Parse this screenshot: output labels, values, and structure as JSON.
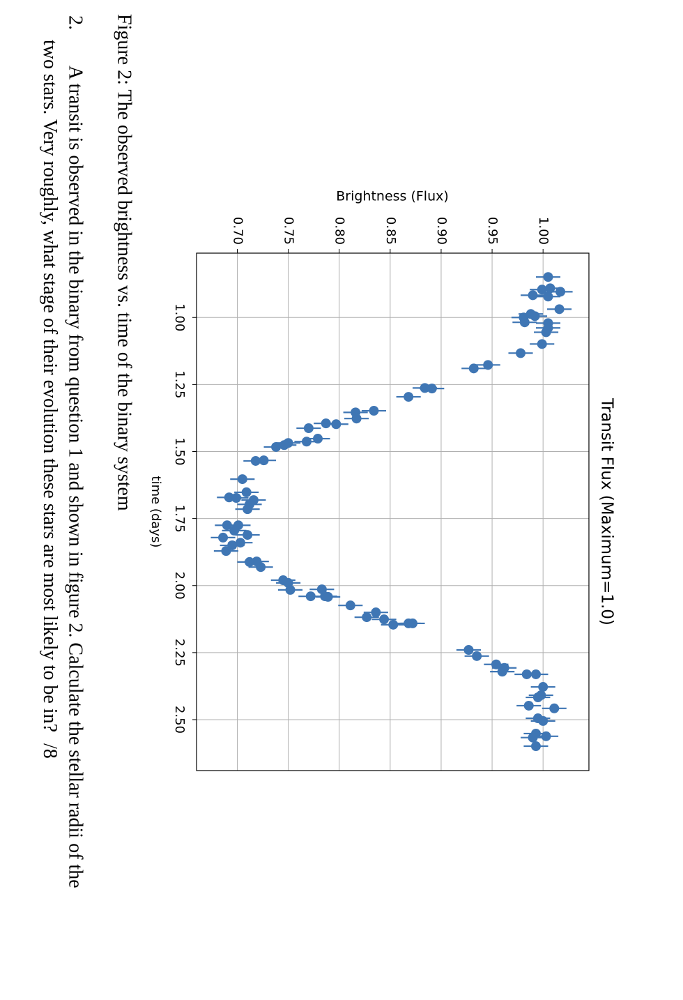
{
  "chart_data": {
    "type": "errorbar",
    "title": "Transit Flux (Maximum=1.0)",
    "xlabel": "time (days)",
    "ylabel": "Brightness (Flux)",
    "x": [
      0.849,
      0.891,
      0.896,
      0.904,
      0.917,
      0.922,
      0.969,
      0.987,
      0.995,
      1.0,
      1.018,
      1.021,
      1.039,
      1.055,
      1.099,
      1.133,
      1.177,
      1.19,
      1.263,
      1.265,
      1.296,
      1.348,
      1.354,
      1.377,
      1.395,
      1.398,
      1.413,
      1.452,
      1.463,
      1.468,
      1.476,
      1.483,
      1.533,
      1.535,
      1.603,
      1.652,
      1.671,
      1.673,
      1.681,
      1.697,
      1.715,
      1.775,
      1.775,
      1.795,
      1.811,
      1.821,
      1.84,
      1.85,
      1.871,
      1.91,
      1.912,
      1.931,
      1.98,
      1.99,
      2.016,
      2.014,
      2.04,
      2.04,
      2.042,
      2.074,
      2.1,
      2.118,
      2.126,
      2.146,
      2.141,
      2.141,
      2.24,
      2.263,
      2.294,
      2.307,
      2.321,
      2.331,
      2.331,
      2.378,
      2.409,
      2.417,
      2.448,
      2.458,
      2.495,
      2.505,
      2.552,
      2.562,
      2.567,
      2.599
    ],
    "values": [
      1.005,
      1.007,
      0.999,
      1.017,
      0.99,
      1.005,
      1.016,
      0.988,
      0.992,
      0.981,
      0.982,
      1.005,
      1.005,
      1.003,
      0.999,
      0.978,
      0.946,
      0.932,
      0.884,
      0.891,
      0.868,
      0.834,
      0.816,
      0.817,
      0.787,
      0.797,
      0.77,
      0.779,
      0.768,
      0.75,
      0.746,
      0.738,
      0.726,
      0.718,
      0.705,
      0.709,
      0.692,
      0.699,
      0.716,
      0.712,
      0.71,
      0.69,
      0.701,
      0.697,
      0.71,
      0.686,
      0.703,
      0.695,
      0.689,
      0.719,
      0.712,
      0.723,
      0.745,
      0.75,
      0.752,
      0.783,
      0.772,
      0.786,
      0.789,
      0.811,
      0.836,
      0.827,
      0.844,
      0.853,
      0.868,
      0.872,
      0.927,
      0.935,
      0.954,
      0.962,
      0.96,
      0.984,
      0.993,
      1.0,
      0.998,
      0.995,
      0.986,
      1.011,
      0.995,
      1.0,
      0.993,
      1.003,
      0.99,
      0.993
    ],
    "yerr": 0.012,
    "color": "#3f76b4",
    "xlim": [
      0.76,
      2.69
    ],
    "ylim": [
      0.66,
      1.045
    ],
    "xticks": [
      {
        "value": 1,
        "label": "1.00"
      },
      1.25,
      {
        "value": 1.5,
        "label": "1.50"
      },
      1.75,
      {
        "value": 2,
        "label": "2.00"
      },
      2.25,
      {
        "value": 2.5,
        "label": "2.50"
      }
    ],
    "yticks": [
      {
        "value": 0.7,
        "label": "0.70"
      },
      0.75,
      {
        "value": 0.8,
        "label": "0.80"
      },
      0.85,
      {
        "value": 0.9,
        "label": "0.90"
      },
      0.95,
      {
        "value": 1,
        "label": "1.00"
      }
    ],
    "grid": true
  },
  "caption": "Figure 2: The observed brightness vs. time of the binary system",
  "question": {
    "number": "2.",
    "line1": "A transit is observed in the binary from question 1 and shown in figure 2. Calculate the stellar radii of the",
    "line2": "two stars. Very roughly, what stage of their evolution these stars are most likely to be in?",
    "marks": "/8"
  }
}
